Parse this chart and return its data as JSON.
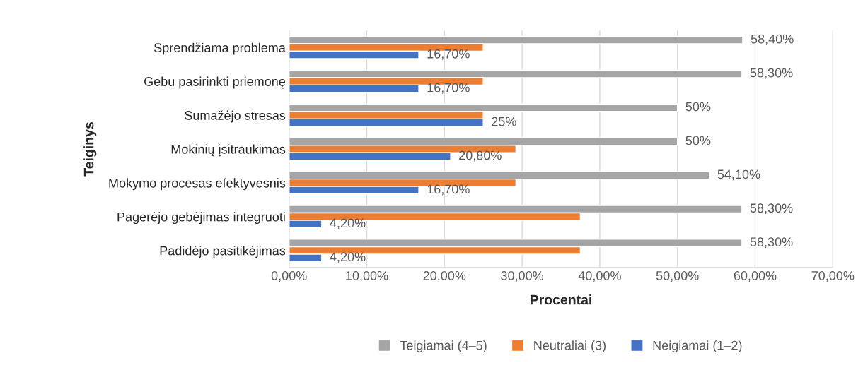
{
  "chart_data": {
    "type": "bar",
    "orientation": "horizontal",
    "xlabel": "Procentai",
    "ylabel": "Teiginys",
    "categories": [
      "Sprendžiama problema",
      "Gebu pasirinkti priemonę",
      "Sumažėjo stresas",
      "Mokinių įsitraukimas",
      "Mokymo procesas efektyvesnis",
      "Pagerėjo gebėjimas integruoti",
      "Padidėjo pasitikėjimas"
    ],
    "series": [
      {
        "name": "Teigiamai (4–5)",
        "color": "#a5a5a5",
        "values": [
          58.4,
          58.3,
          50,
          50,
          54.1,
          58.3,
          58.3
        ],
        "value_labels": [
          "58,40%",
          "58,30%",
          "50%",
          "50%",
          "54,10%",
          "58,30%",
          "58,30%"
        ]
      },
      {
        "name": "Neutraliai (3)",
        "color": "#ed7d31",
        "values": [
          25,
          25,
          25,
          29.2,
          29.2,
          37.5,
          37.5
        ]
      },
      {
        "name": "Neigiamai (1–2)",
        "color": "#4472c4",
        "values": [
          16.7,
          16.7,
          25,
          20.8,
          16.7,
          4.2,
          4.2
        ],
        "value_labels": [
          "16,70%",
          "16,70%",
          "25%",
          "20,80%",
          "16,70%",
          "4,20%",
          "4,20%"
        ]
      }
    ],
    "xlim": [
      0,
      70
    ],
    "xticks": [
      {
        "value": 0,
        "label": "0,00%"
      },
      {
        "value": 10,
        "label": "10,00%"
      },
      {
        "value": 20,
        "label": "20,00%"
      },
      {
        "value": 30,
        "label": "30,00%"
      },
      {
        "value": 40,
        "label": "40,00%"
      },
      {
        "value": 50,
        "label": "50,00%"
      },
      {
        "value": 60,
        "label": "60,00%"
      },
      {
        "value": 70,
        "label": "70,00%"
      }
    ],
    "grid": "x",
    "legend": "bottom"
  }
}
